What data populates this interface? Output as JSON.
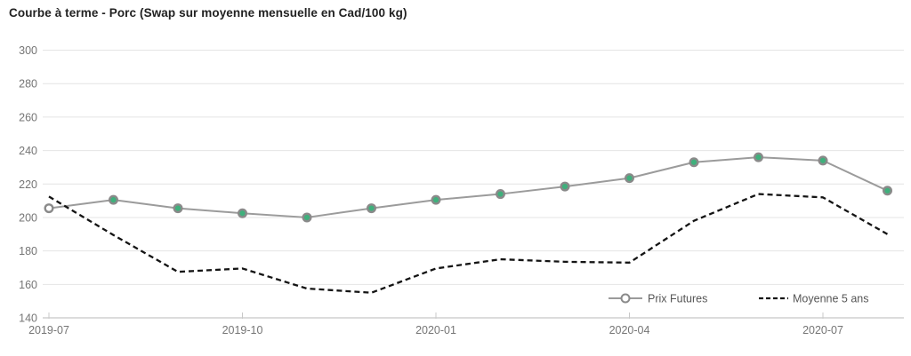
{
  "title": "Courbe à terme - Porc (Swap sur moyenne mensuelle en Cad/100 kg)",
  "chart_data": {
    "type": "line",
    "title": "Courbe à terme - Porc (Swap sur moyenne mensuelle en Cad/100 kg)",
    "unit": "Cad/100 kg",
    "x": [
      "2019-07",
      "2019-08",
      "2019-09",
      "2019-10",
      "2019-11",
      "2019-12",
      "2020-01",
      "2020-02",
      "2020-03",
      "2020-04",
      "2020-05",
      "2020-06",
      "2020-07",
      "2020-08"
    ],
    "x_tick_labels": [
      "2019-07",
      "2019-10",
      "2020-01",
      "2020-04",
      "2020-07"
    ],
    "x_tick_indices": [
      0,
      3,
      6,
      9,
      12
    ],
    "y_ticks": [
      140,
      160,
      180,
      200,
      220,
      240,
      260,
      280,
      300
    ],
    "ylim": [
      140,
      300
    ],
    "grid": "horizontal",
    "legend_position": "bottom-right-inside",
    "series": [
      {
        "name": "Prix Futures",
        "line_style": "solid",
        "color": "#9b9b9b",
        "marker": "circle",
        "marker_fill": "#3fb07c",
        "marker_ring": "#8a8a8a",
        "first_marker_fill": "#ffffff",
        "values": [
          205.5,
          210.5,
          205.5,
          202.5,
          200,
          205.5,
          210.5,
          214,
          218.5,
          223.5,
          233,
          236,
          234,
          216
        ]
      },
      {
        "name": "Moyenne 5 ans",
        "line_style": "dashed",
        "color": "#141414",
        "marker": "none",
        "values": [
          212.5,
          189.5,
          167.5,
          169.5,
          157.5,
          155,
          169.5,
          175,
          173.5,
          173,
          198,
          214,
          212,
          190
        ]
      }
    ],
    "colors": {
      "axis_line": "#c8c8c8",
      "gridline": "#e4e4e4",
      "tick_label": "#757575",
      "legend_text": "#555555",
      "title_text": "#222222",
      "background": "#ffffff"
    }
  }
}
